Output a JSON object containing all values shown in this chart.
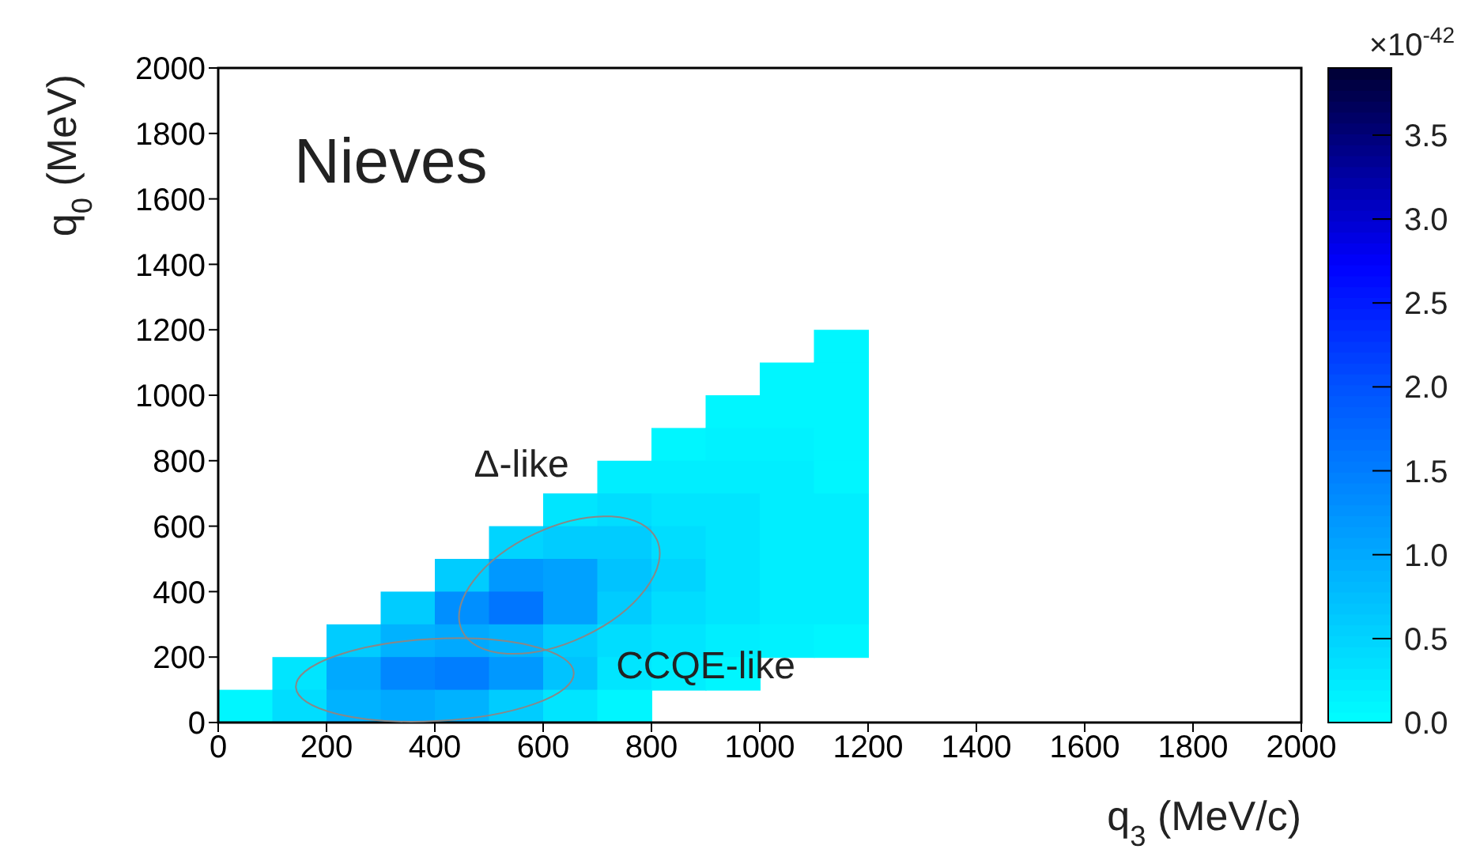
{
  "chart_data": {
    "type": "heatmap",
    "title": "Nieves",
    "xlabel": "q$_{3}$ (MeV/c)",
    "ylabel": "q$_{0}$ (MeV)",
    "clabel": "×10$^{-42}$",
    "annotations": [
      "Δ-like",
      "CCQE-like"
    ],
    "x": [
      50,
      150,
      250,
      350,
      450,
      550,
      650,
      750,
      850,
      950,
      1050,
      1150
    ],
    "y": [
      1150,
      1050,
      950,
      850,
      750,
      650,
      550,
      450,
      350,
      250,
      150,
      50
    ],
    "cells": [
      [
        null,
        null,
        null,
        null,
        null,
        null,
        null,
        null,
        null,
        null,
        null,
        0.1
      ],
      [
        null,
        null,
        null,
        null,
        null,
        null,
        null,
        null,
        null,
        null,
        0.1,
        0.1
      ],
      [
        null,
        null,
        null,
        null,
        null,
        null,
        null,
        null,
        null,
        0.1,
        0.1,
        0.1
      ],
      [
        null,
        null,
        null,
        null,
        null,
        null,
        null,
        null,
        0.1,
        0.15,
        0.15,
        0.1
      ],
      [
        null,
        null,
        null,
        null,
        null,
        null,
        null,
        0.2,
        0.2,
        0.2,
        0.2,
        0.1
      ],
      [
        null,
        null,
        null,
        null,
        null,
        null,
        0.3,
        0.4,
        0.3,
        0.3,
        0.2,
        0.2
      ],
      [
        null,
        null,
        null,
        null,
        null,
        0.5,
        0.6,
        0.6,
        0.4,
        0.3,
        0.2,
        0.2
      ],
      [
        null,
        null,
        null,
        null,
        0.6,
        1.2,
        1.1,
        0.7,
        0.5,
        0.3,
        0.2,
        0.2
      ],
      [
        null,
        null,
        null,
        0.6,
        1.3,
        1.6,
        1.1,
        0.6,
        0.4,
        0.3,
        0.2,
        0.2
      ],
      [
        null,
        null,
        0.6,
        0.9,
        1.0,
        0.9,
        0.6,
        0.4,
        0.3,
        0.2,
        0.15,
        0.1
      ],
      [
        null,
        0.3,
        1.0,
        1.4,
        1.5,
        1.2,
        0.7,
        0.3,
        0.2,
        0.1,
        null,
        null
      ],
      [
        0.1,
        0.4,
        0.9,
        1.0,
        0.9,
        0.6,
        0.3,
        0.1,
        null,
        null,
        null,
        null
      ]
    ],
    "xlim": [
      0,
      2000
    ],
    "xticks": [
      0,
      200,
      400,
      600,
      800,
      1000,
      1200,
      1400,
      1600,
      1800,
      2000
    ],
    "ylim": [
      0,
      2000
    ],
    "yticks": [
      0,
      200,
      400,
      600,
      800,
      1000,
      1200,
      1400,
      1600,
      1800,
      2000
    ],
    "clim": [
      0,
      3.9
    ],
    "cticks": [
      {
        "value": 0,
        "label": "0.0"
      },
      0.5,
      {
        "value": 1,
        "label": "1.0"
      },
      1.5,
      {
        "value": 2,
        "label": "2.0"
      },
      2.5,
      {
        "value": 3,
        "label": "3.0"
      },
      3.5
    ]
  }
}
